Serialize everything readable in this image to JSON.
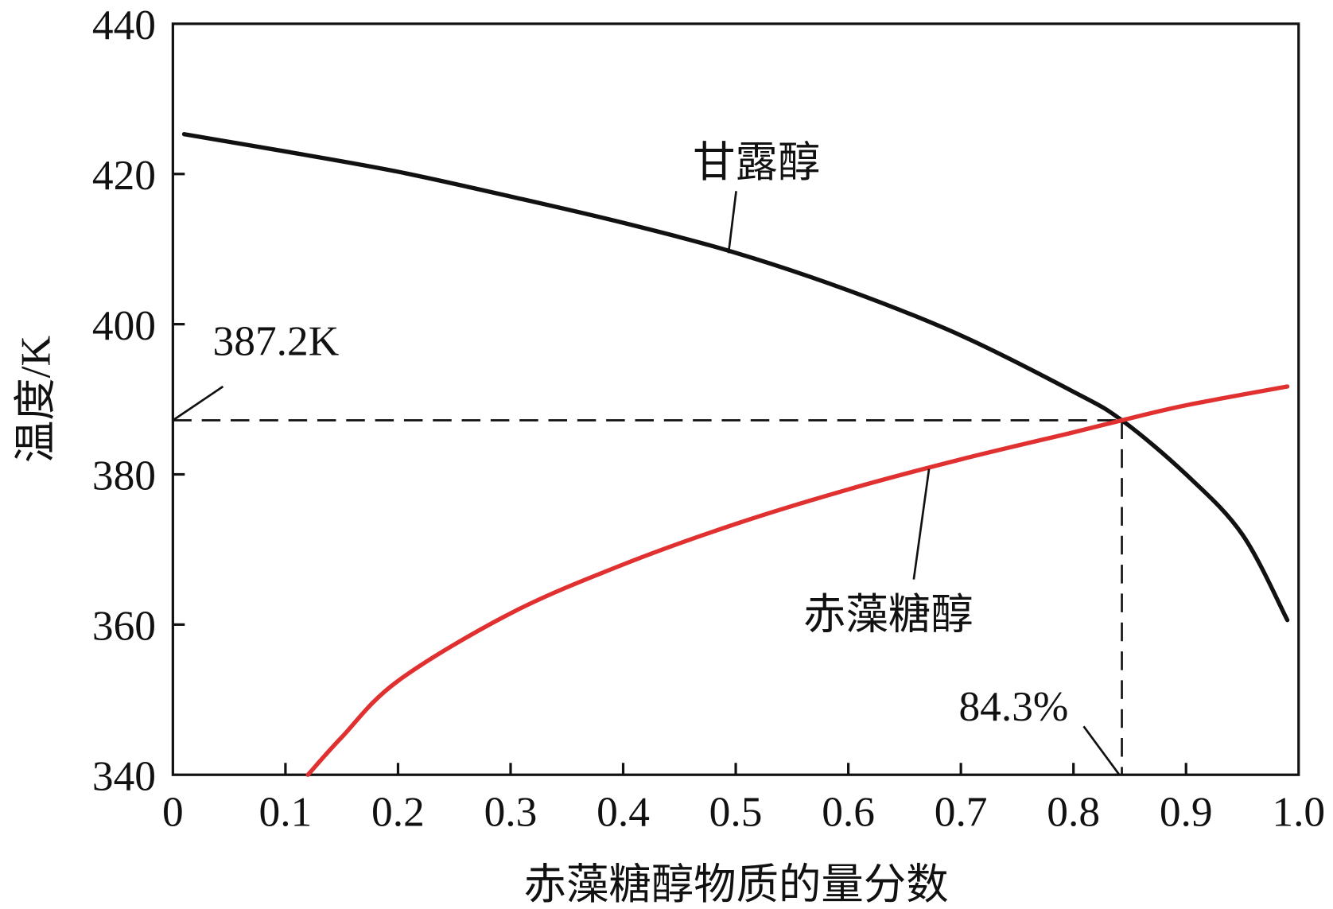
{
  "chart_data": {
    "type": "line",
    "title": "",
    "xlabel": "赤藻糖醇物质的量分数",
    "ylabel": "温度/K",
    "xlim": [
      0,
      1.0
    ],
    "ylim": [
      340,
      440
    ],
    "xticks": [
      "0",
      "0.1",
      "0.2",
      "0.3",
      "0.4",
      "0.5",
      "0.6",
      "0.7",
      "0.8",
      "0.9",
      "1.0"
    ],
    "yticks": [
      "340",
      "360",
      "380",
      "400",
      "420",
      "440"
    ],
    "grid": false,
    "series": [
      {
        "name": "甘露醇",
        "color": "#111111",
        "x": [
          0.01,
          0.1,
          0.2,
          0.3,
          0.4,
          0.5,
          0.6,
          0.7,
          0.8,
          0.843,
          0.9,
          0.95,
          0.99
        ],
        "y": [
          425.3,
          423.0,
          420.3,
          417.0,
          413.5,
          409.5,
          404.5,
          398.5,
          391.0,
          387.2,
          380.0,
          372.0,
          360.6
        ]
      },
      {
        "name": "赤藻糖醇",
        "color": "#e03030",
        "x": [
          0.12,
          0.15,
          0.2,
          0.3,
          0.4,
          0.5,
          0.6,
          0.7,
          0.8,
          0.843,
          0.9,
          0.99
        ],
        "y": [
          340.0,
          345.0,
          352.5,
          361.5,
          368.0,
          373.4,
          378.0,
          382.0,
          385.6,
          387.2,
          389.2,
          391.7
        ]
      }
    ],
    "annotations": {
      "intersection_temp": {
        "label": "387.2K",
        "value": 387.2
      },
      "intersection_fraction": {
        "label": "84.3%",
        "value": 0.843
      }
    }
  }
}
